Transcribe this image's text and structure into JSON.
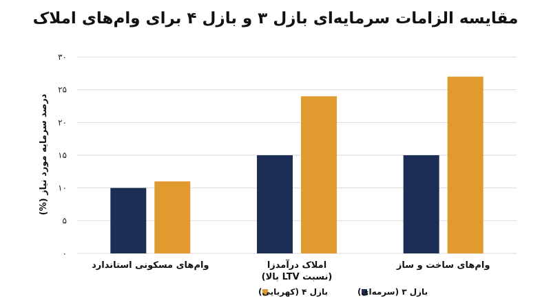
{
  "chart_data": {
    "type": "bar",
    "title": "مقایسه الزامات سرمایه‌ای بازل ۳ و بازل ۴ برای وام‌های املاک",
    "ylabel": "درصد سرمایه مورد نیاز (%)",
    "xlabel": "",
    "ylim": [
      0,
      30
    ],
    "grid": true,
    "legend_position": "bottom",
    "yticks": [
      0,
      5,
      10,
      15,
      20,
      25,
      30
    ],
    "ytick_labels": [
      "۰",
      "۵",
      "۱۰",
      "۱۵",
      "۲۰",
      "۲۵",
      "۳۰"
    ],
    "categories": [
      {
        "lines": [
          "وام‌های مسکونی استاندارد"
        ]
      },
      {
        "lines": [
          "املاک درآمدزا",
          "(نسبت LTV بالا)"
        ]
      },
      {
        "lines": [
          "وام‌های ساخت و ساز"
        ]
      }
    ],
    "series": [
      {
        "name": "بازل ۳ (سرمه‌ای)",
        "color": "#1c2e54",
        "values": [
          10,
          15,
          15
        ]
      },
      {
        "name": "بازل ۴ (کهربایی)",
        "color": "#e09a2d",
        "values": [
          11,
          24,
          27
        ]
      }
    ]
  }
}
